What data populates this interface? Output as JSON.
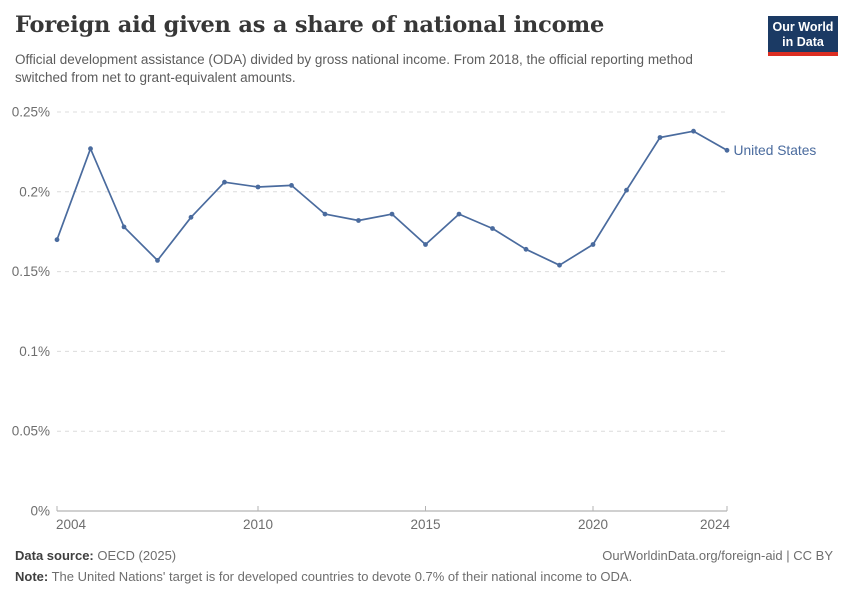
{
  "chart_data": {
    "type": "line",
    "title": "Foreign aid given as a share of national income",
    "subtitle": "Official development assistance (ODA) divided by gross national income. From 2018, the official reporting method switched from net to grant-equivalent amounts.",
    "x": [
      2004,
      2005,
      2006,
      2007,
      2008,
      2009,
      2010,
      2011,
      2012,
      2013,
      2014,
      2015,
      2016,
      2017,
      2018,
      2019,
      2020,
      2021,
      2022,
      2023,
      2024
    ],
    "series": [
      {
        "name": "United States",
        "color": "#4a6b9e",
        "values": [
          0.17,
          0.227,
          0.178,
          0.157,
          0.184,
          0.206,
          0.203,
          0.204,
          0.186,
          0.182,
          0.186,
          0.167,
          0.186,
          0.177,
          0.164,
          0.154,
          0.167,
          0.201,
          0.234,
          0.238,
          0.226
        ]
      }
    ],
    "unit": "%",
    "xlabel": "",
    "ylabel": "",
    "ylim": [
      0,
      0.25
    ],
    "yticks": [
      {
        "value": 0.25,
        "label": "0.25%"
      },
      {
        "value": 0.2,
        "label": "0.2%"
      },
      {
        "value": 0.15,
        "label": "0.15%"
      },
      {
        "value": 0.1,
        "label": "0.1%"
      },
      {
        "value": 0.05,
        "label": "0.05%"
      },
      {
        "value": 0,
        "label": "0%"
      }
    ],
    "xticks": [
      2004,
      2010,
      2015,
      2020,
      2024
    ],
    "grid": "horizontal-dashed",
    "legend": "entity-label-at-line-end",
    "colors": {
      "line": "#4a6b9e",
      "gridline": "#dcdcdc",
      "axis": "#a0a0a0",
      "tick_label": "#6e6e6e"
    }
  },
  "logo": {
    "line1": "Our World",
    "line2": "in Data",
    "bg_color": "#1b3a64",
    "bar_color": "#dc2e22"
  },
  "footer": {
    "sources_label": "Data source:",
    "sources_text": "OECD (2025)",
    "link_text": "OurWorldinData.org/foreign-aid | CC BY",
    "note_label": "Note:",
    "note_text": "The United Nations' target is for developed countries to devote 0.7% of their national income to ODA."
  }
}
